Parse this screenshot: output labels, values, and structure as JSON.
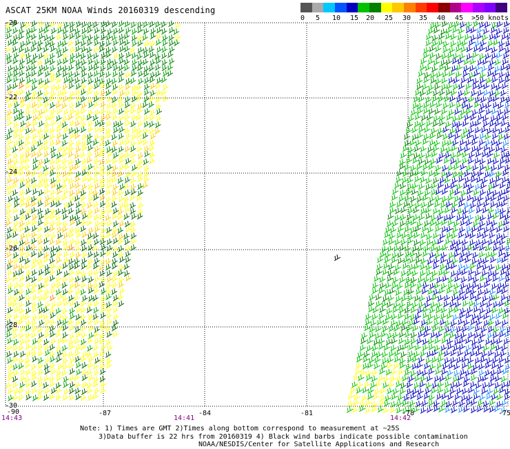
{
  "title": "ASCAT 25KM NOAA Winds 20160319 descending",
  "legend": {
    "colors": [
      "#555555",
      "#aaaaaa",
      "#00c8ff",
      "#0055ff",
      "#0000c0",
      "#00c000",
      "#008000",
      "#ffff00",
      "#ffc800",
      "#ff8000",
      "#ff3c00",
      "#ff0000",
      "#8b0000",
      "#b0008b",
      "#ff00ff",
      "#aa00ff",
      "#8000ff",
      "#400080"
    ],
    "labels": [
      "0",
      "5",
      "10",
      "15",
      "20",
      "25",
      "30",
      "35",
      "40",
      "45",
      ">50 knots"
    ]
  },
  "axes": {
    "lat_ticks": [
      "-20",
      "-22",
      "-24",
      "-26",
      "-28",
      "-30"
    ],
    "lon_ticks": [
      "-90",
      "-87",
      "-84",
      "-81",
      "-78",
      "-75"
    ],
    "lat_range": [
      -30,
      -20
    ],
    "lon_range": [
      -90,
      -75
    ],
    "grid": true
  },
  "times": [
    "14:43",
    "14:41",
    "14:42"
  ],
  "swaths": {
    "left": {
      "colors": [
        "#ffff00",
        "#00a000",
        "#008000",
        "#006400",
        "#ffc800",
        "#ff8000"
      ],
      "dominant": "yellow-green"
    },
    "right": {
      "colors": [
        "#0000c0",
        "#00c000",
        "#1e90ff",
        "#008000",
        "#ffff00"
      ],
      "dominant": "blue-green"
    }
  },
  "notes": {
    "line1": "Note: 1) Times are GMT 2)Times along bottom correspond to measurement at ~25S",
    "line2": "3)Data buffer is 22 hrs from 20160319 4) Black wind barbs indicate possible contamination",
    "line3": "NOAA/NESDIS/Center for Satellite Applications and Research"
  }
}
